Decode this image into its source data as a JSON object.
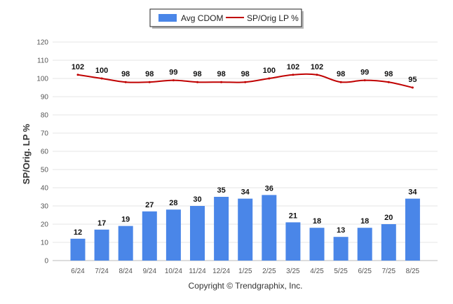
{
  "chart_data": {
    "type": "bar",
    "categories": [
      "6/24",
      "7/24",
      "8/24",
      "9/24",
      "10/24",
      "11/24",
      "12/24",
      "1/25",
      "2/25",
      "3/25",
      "4/25",
      "5/25",
      "6/25",
      "7/25",
      "8/25"
    ],
    "series": [
      {
        "name": "Avg CDOM",
        "type": "bar",
        "color": "#4a86e8",
        "values": [
          12,
          17,
          19,
          27,
          28,
          30,
          35,
          34,
          36,
          21,
          18,
          13,
          18,
          20,
          34
        ]
      },
      {
        "name": "SP/Orig LP %",
        "type": "line",
        "color": "#c00000",
        "values": [
          102,
          100,
          98,
          98,
          99,
          98,
          98,
          98,
          100,
          102,
          102,
          98,
          99,
          98,
          95
        ]
      }
    ],
    "ylabel": "SP/Orig. LP %",
    "ylim": [
      0,
      120
    ],
    "yticks": [
      0,
      10,
      20,
      30,
      40,
      50,
      60,
      70,
      80,
      90,
      100,
      110,
      120
    ],
    "grid": true,
    "legend_position": "top-center"
  },
  "footer": "Copyright © Trendgraphix, Inc."
}
